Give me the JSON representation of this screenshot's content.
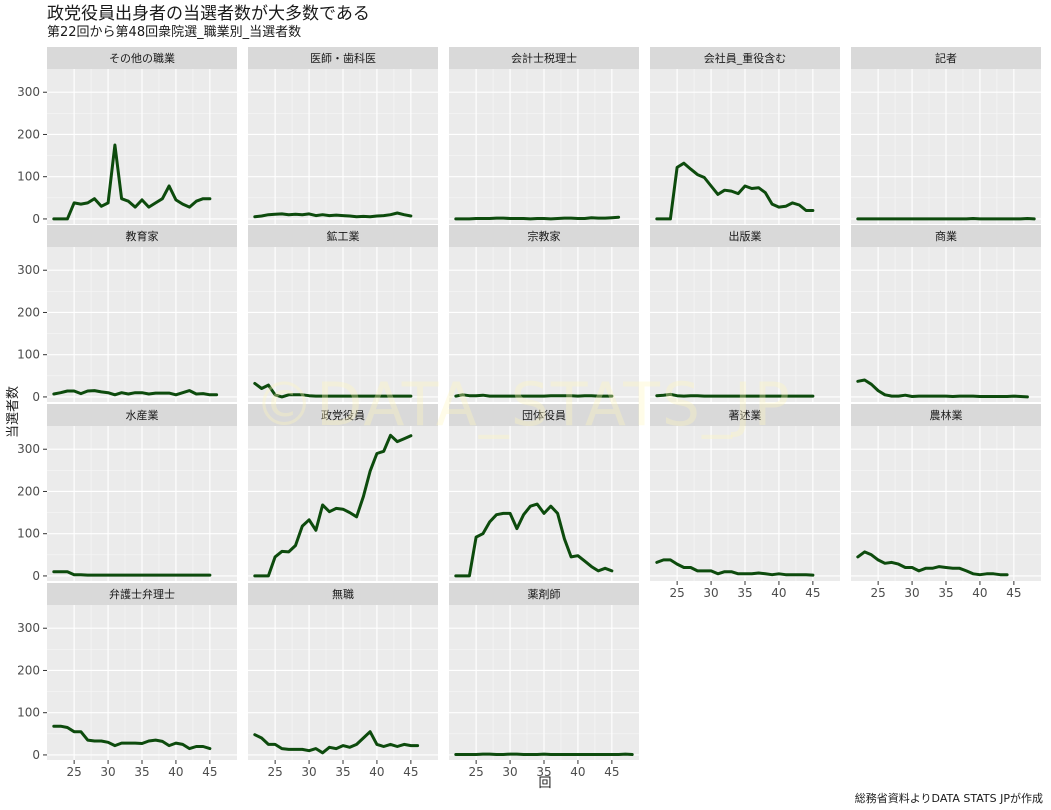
{
  "chart_data": {
    "type": "line",
    "title": "政党役員出身者の当選者数が大多数である",
    "subtitle": "第22回から第48回衆院選_職業別_当選者数",
    "caption": "総務省資料よりDATA STATS JPが作成",
    "watermark": "©DATA_STATS_JP",
    "xlabel": "回",
    "ylabel": "当選者数",
    "x": [
      22,
      23,
      24,
      25,
      26,
      27,
      28,
      29,
      30,
      31,
      32,
      33,
      34,
      35,
      36,
      37,
      38,
      39,
      40,
      41,
      42,
      43,
      44,
      45,
      46,
      47,
      48
    ],
    "xlim": [
      21,
      49
    ],
    "ylim": [
      -12,
      355
    ],
    "xticks": [
      25,
      30,
      35,
      40,
      45
    ],
    "yticks": [
      0,
      100,
      200,
      300
    ],
    "grid": true,
    "facet_ncol": 5,
    "line_color": "#0d4b0d",
    "panel_color": "#ebebeb",
    "strip_color": "#d9d9d9",
    "series": [
      {
        "name": "その他の職業",
        "values": [
          0,
          0,
          0,
          38,
          35,
          38,
          48,
          30,
          38,
          175,
          48,
          42,
          28,
          45,
          28,
          38,
          48,
          78,
          45,
          35,
          28,
          42,
          48,
          48,
          null,
          null,
          null
        ]
      },
      {
        "name": "医師・歯科医",
        "values": [
          5,
          7,
          10,
          11,
          12,
          10,
          11,
          10,
          12,
          8,
          10,
          8,
          9,
          8,
          7,
          5,
          6,
          5,
          7,
          8,
          10,
          14,
          10,
          7,
          null,
          null,
          null
        ]
      },
      {
        "name": "会計士税理士",
        "values": [
          0,
          0,
          0,
          1,
          1,
          1,
          2,
          2,
          1,
          1,
          1,
          0,
          1,
          1,
          0,
          1,
          2,
          2,
          1,
          1,
          3,
          2,
          2,
          3,
          4,
          null,
          null
        ]
      },
      {
        "name": "会社員_重役含む",
        "values": [
          0,
          0,
          0,
          122,
          132,
          118,
          105,
          98,
          78,
          58,
          68,
          66,
          60,
          78,
          72,
          74,
          62,
          35,
          28,
          30,
          38,
          33,
          20,
          20,
          null,
          null,
          null
        ]
      },
      {
        "name": "記者",
        "values": [
          0,
          0,
          0,
          0,
          0,
          0,
          0,
          0,
          0,
          0,
          0,
          0,
          0,
          0,
          0,
          0,
          0,
          1,
          0,
          0,
          0,
          0,
          0,
          0,
          0,
          1,
          0
        ]
      },
      {
        "name": "教育家",
        "values": [
          7,
          10,
          14,
          14,
          8,
          14,
          15,
          12,
          10,
          5,
          10,
          7,
          10,
          10,
          7,
          9,
          9,
          9,
          5,
          10,
          15,
          7,
          8,
          5,
          5,
          null,
          null
        ]
      },
      {
        "name": "鉱工業",
        "values": [
          32,
          20,
          28,
          5,
          0,
          5,
          5,
          5,
          3,
          2,
          2,
          2,
          2,
          2,
          2,
          2,
          2,
          2,
          2,
          2,
          2,
          2,
          2,
          2,
          null,
          null,
          null
        ]
      },
      {
        "name": "宗教家",
        "values": [
          2,
          5,
          3,
          3,
          4,
          2,
          2,
          2,
          2,
          2,
          2,
          2,
          2,
          2,
          3,
          3,
          3,
          3,
          2,
          3,
          3,
          2,
          2,
          2,
          null,
          null,
          null
        ]
      },
      {
        "name": "出版業",
        "values": [
          3,
          4,
          6,
          3,
          2,
          3,
          3,
          2,
          2,
          2,
          2,
          2,
          2,
          2,
          2,
          2,
          2,
          2,
          2,
          2,
          2,
          2,
          2,
          2,
          null,
          null,
          null
        ]
      },
      {
        "name": "商業",
        "values": [
          37,
          40,
          30,
          15,
          5,
          2,
          2,
          4,
          1,
          2,
          2,
          2,
          2,
          2,
          1,
          2,
          2,
          2,
          1,
          1,
          1,
          1,
          1,
          2,
          1,
          0,
          null
        ]
      },
      {
        "name": "水産業",
        "values": [
          10,
          10,
          10,
          3,
          3,
          2,
          2,
          2,
          2,
          2,
          2,
          2,
          2,
          2,
          2,
          2,
          2,
          2,
          2,
          2,
          2,
          2,
          2,
          2,
          null,
          null,
          null
        ]
      },
      {
        "name": "政党役員",
        "values": [
          0,
          0,
          0,
          45,
          58,
          57,
          72,
          118,
          133,
          108,
          168,
          152,
          160,
          158,
          150,
          140,
          188,
          248,
          290,
          295,
          333,
          318,
          325,
          332,
          null,
          null,
          null
        ]
      },
      {
        "name": "団体役員",
        "values": [
          0,
          0,
          0,
          92,
          100,
          128,
          145,
          148,
          148,
          112,
          145,
          165,
          170,
          148,
          165,
          148,
          88,
          45,
          48,
          35,
          22,
          12,
          18,
          12,
          null,
          null,
          null
        ]
      },
      {
        "name": "著述業",
        "values": [
          32,
          38,
          38,
          28,
          20,
          20,
          12,
          12,
          12,
          5,
          10,
          10,
          5,
          5,
          5,
          7,
          5,
          3,
          5,
          3,
          3,
          3,
          3,
          2,
          null,
          null,
          null
        ]
      },
      {
        "name": "農林業",
        "values": [
          45,
          57,
          50,
          38,
          30,
          32,
          28,
          20,
          20,
          12,
          18,
          18,
          22,
          20,
          18,
          18,
          12,
          5,
          3,
          5,
          5,
          3,
          3,
          null,
          null,
          null,
          null
        ]
      },
      {
        "name": "弁護士弁理士",
        "values": [
          68,
          68,
          65,
          55,
          55,
          35,
          33,
          33,
          30,
          22,
          28,
          28,
          28,
          27,
          33,
          35,
          32,
          22,
          28,
          25,
          15,
          20,
          20,
          15,
          null,
          null,
          null
        ]
      },
      {
        "name": "無職",
        "values": [
          48,
          40,
          25,
          25,
          15,
          13,
          13,
          13,
          10,
          15,
          5,
          18,
          15,
          22,
          18,
          25,
          40,
          55,
          25,
          20,
          25,
          20,
          25,
          22,
          22,
          null,
          null
        ]
      },
      {
        "name": "薬剤師",
        "values": [
          1,
          1,
          1,
          1,
          2,
          2,
          1,
          1,
          2,
          2,
          1,
          1,
          1,
          2,
          1,
          1,
          1,
          1,
          1,
          1,
          1,
          1,
          1,
          1,
          1,
          2,
          1
        ]
      }
    ]
  }
}
